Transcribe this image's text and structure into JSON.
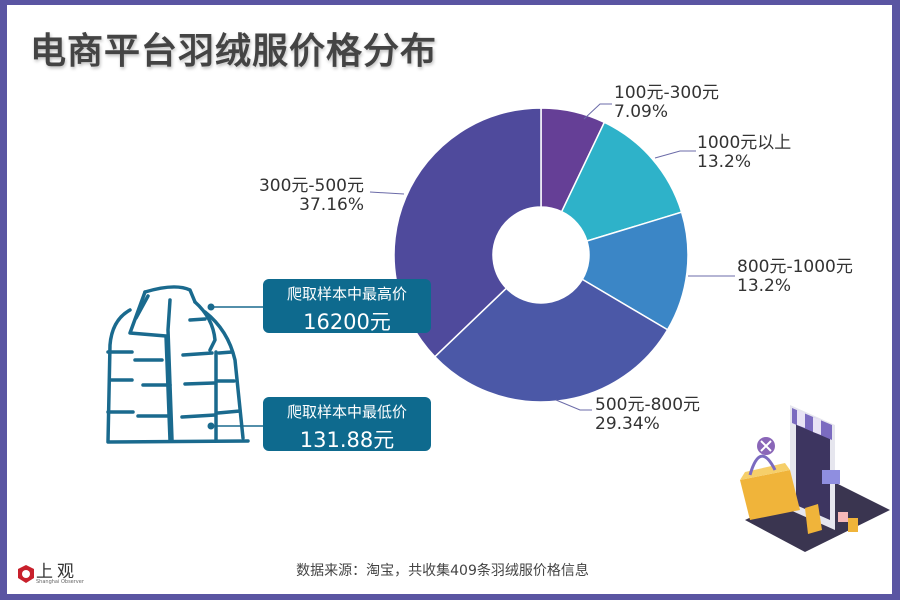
{
  "title": "电商平台羽绒服价格分布",
  "chart_data": {
    "type": "pie",
    "variant": "donut",
    "title": "电商平台羽绒服价格分布",
    "categories": [
      "100元-300元",
      "1000元以上",
      "800元-1000元",
      "500元-800元",
      "300元-500元"
    ],
    "values": [
      7.09,
      13.2,
      13.2,
      29.34,
      37.16
    ],
    "value_labels": [
      "7.09%",
      "13.2%",
      "13.2%",
      "29.34%",
      "37.16%"
    ],
    "colors": [
      "#653f96",
      "#2eb2c9",
      "#3b86c6",
      "#4b58a7",
      "#4f4a9c"
    ],
    "start_angle": "12 o'clock, clockwise",
    "unit": "%"
  },
  "labels": [
    {
      "name": "100元-300元",
      "value": "7.09%"
    },
    {
      "name": "1000元以上",
      "value": "13.2%"
    },
    {
      "name": "800元-1000元",
      "value": "13.2%"
    },
    {
      "name": "500元-800元",
      "value": "29.34%"
    },
    {
      "name": "300元-500元",
      "value": "37.16%"
    }
  ],
  "info": {
    "max": {
      "label": "爬取样本中最高价",
      "value": "16200元"
    },
    "min": {
      "label": "爬取样本中最低价",
      "value": "131.88元"
    }
  },
  "source": "数据来源：淘宝，共收集409条羽绒服价格信息",
  "logo": {
    "text": "上观",
    "sub": "Shanghai Observer"
  },
  "colors": {
    "frame": "#5a55a2",
    "info_box": "#0e6a8e",
    "jacket_stroke": "#1a6a8e"
  }
}
